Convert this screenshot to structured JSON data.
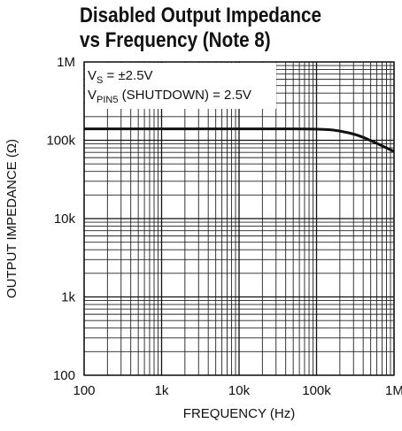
{
  "chart_data": {
    "type": "line",
    "title": [
      "Disabled Output Impedance",
      "vs Frequency (Note 8)"
    ],
    "xlabel": "FREQUENCY (Hz)",
    "ylabel": "OUTPUT IMPEDANCE (Ω)",
    "xscale": "log",
    "yscale": "log",
    "xlim": [
      100,
      1000000
    ],
    "ylim": [
      100,
      1000000
    ],
    "grid": true,
    "x_ticks": [
      {
        "value": 100,
        "label": "100"
      },
      {
        "value": 1000,
        "label": "1k"
      },
      {
        "value": 10000,
        "label": "10k"
      },
      {
        "value": 100000,
        "label": "100k"
      },
      {
        "value": 1000000,
        "label": "1M"
      }
    ],
    "y_ticks": [
      {
        "value": 100,
        "label": "100"
      },
      {
        "value": 1000,
        "label": "1k"
      },
      {
        "value": 10000,
        "label": "10k"
      },
      {
        "value": 100000,
        "label": "100k"
      },
      {
        "value": 1000000,
        "label": "1M"
      }
    ],
    "annotations": [
      {
        "text_main": "V",
        "text_sub": "S",
        "text_rest": " = ±2.5V"
      },
      {
        "text_main": "V",
        "text_sub": "PIN5",
        "text_rest": " (SHUTDOWN) = 2.5V"
      }
    ],
    "series": [
      {
        "x": [
          100,
          1000,
          10000,
          50000,
          100000,
          150000,
          200000,
          300000,
          400000,
          500000,
          700000,
          1000000
        ],
        "y": [
          140000,
          140000,
          140000,
          140000,
          139000,
          136000,
          131000,
          120000,
          109000,
          99000,
          85000,
          72000
        ]
      }
    ]
  }
}
